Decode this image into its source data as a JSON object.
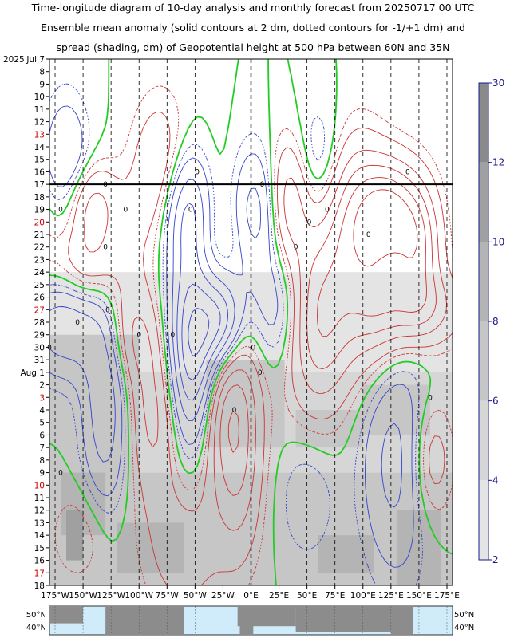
{
  "title": {
    "line1": "Time-longitude diagram of 10-day analysis and monthly forecast from 20250717 00 UTC",
    "line2": "Ensemble mean anomaly (solid contours at 2 dm, dotted contours for -1/+1 dm) and",
    "line3": "spread (shading, dm) of Geopotential height at 500 hPa between 60N and 35N"
  },
  "chart_data": {
    "type": "heatmap",
    "year_label": "2025",
    "y_ticks": [
      {
        "label": "Jul 7",
        "red": false
      },
      {
        "label": "8",
        "red": false
      },
      {
        "label": "9",
        "red": false
      },
      {
        "label": "10",
        "red": false
      },
      {
        "label": "11",
        "red": false
      },
      {
        "label": "12",
        "red": false
      },
      {
        "label": "13",
        "red": true
      },
      {
        "label": "14",
        "red": false
      },
      {
        "label": "15",
        "red": false
      },
      {
        "label": "16",
        "red": false
      },
      {
        "label": "17",
        "red": false
      },
      {
        "label": "18",
        "red": false
      },
      {
        "label": "19",
        "red": false
      },
      {
        "label": "20",
        "red": true
      },
      {
        "label": "21",
        "red": false
      },
      {
        "label": "22",
        "red": false
      },
      {
        "label": "23",
        "red": false
      },
      {
        "label": "24",
        "red": false
      },
      {
        "label": "25",
        "red": false
      },
      {
        "label": "26",
        "red": false
      },
      {
        "label": "27",
        "red": true
      },
      {
        "label": "28",
        "red": false
      },
      {
        "label": "29",
        "red": false
      },
      {
        "label": "30",
        "red": false
      },
      {
        "label": "31",
        "red": false
      },
      {
        "label": "Aug 1",
        "red": false
      },
      {
        "label": "2",
        "red": false
      },
      {
        "label": "3",
        "red": true
      },
      {
        "label": "4",
        "red": false
      },
      {
        "label": "5",
        "red": false
      },
      {
        "label": "6",
        "red": false
      },
      {
        "label": "7",
        "red": false
      },
      {
        "label": "8",
        "red": false
      },
      {
        "label": "9",
        "red": false
      },
      {
        "label": "10",
        "red": true
      },
      {
        "label": "11",
        "red": false
      },
      {
        "label": "12",
        "red": false
      },
      {
        "label": "13",
        "red": false
      },
      {
        "label": "14",
        "red": false
      },
      {
        "label": "15",
        "red": false
      },
      {
        "label": "16",
        "red": false
      },
      {
        "label": "17",
        "red": true
      },
      {
        "label": "18",
        "red": false
      }
    ],
    "x_ticks": [
      "175°W",
      "150°W",
      "125°W",
      "100°W",
      "75°W",
      "50°W",
      "25°W",
      "0°E",
      "25°E",
      "50°E",
      "75°E",
      "100°E",
      "125°E",
      "150°E",
      "175°E"
    ],
    "x_values": [
      -175,
      -150,
      -125,
      -100,
      -75,
      -50,
      -25,
      0,
      25,
      50,
      75,
      100,
      125,
      150,
      175
    ],
    "xlim": [
      -180,
      180
    ],
    "analysis_forecast_boundary": "17",
    "colorbar": {
      "label_values": [
        "30",
        "12",
        "10",
        "8",
        "6",
        "4",
        "2"
      ],
      "shades": [
        "#8a8a8a",
        "#a0a0a0",
        "#b4b4b4",
        "#c6c6c6",
        "#d6d6d6",
        "#e4e4e4"
      ]
    },
    "contour_labels": [
      "0",
      "0",
      "0",
      "0",
      "0",
      "0",
      "0",
      "0",
      "0",
      "0",
      "0",
      "0",
      "0",
      "0",
      "0",
      "0",
      "0",
      "0",
      "0",
      "0",
      "0",
      "0"
    ],
    "colors": {
      "positive": "#cc3333",
      "negative": "#3344cc",
      "zero": "#22cc22",
      "year_label": "#000000",
      "sunday": "#cc0000"
    }
  },
  "map_strip": {
    "lat_labels_left": [
      "50°N",
      "40°N"
    ],
    "lat_labels_right": [
      "50°N",
      "40°N"
    ],
    "ocean": "#d0ecfa",
    "land": "#8c8c8c"
  }
}
